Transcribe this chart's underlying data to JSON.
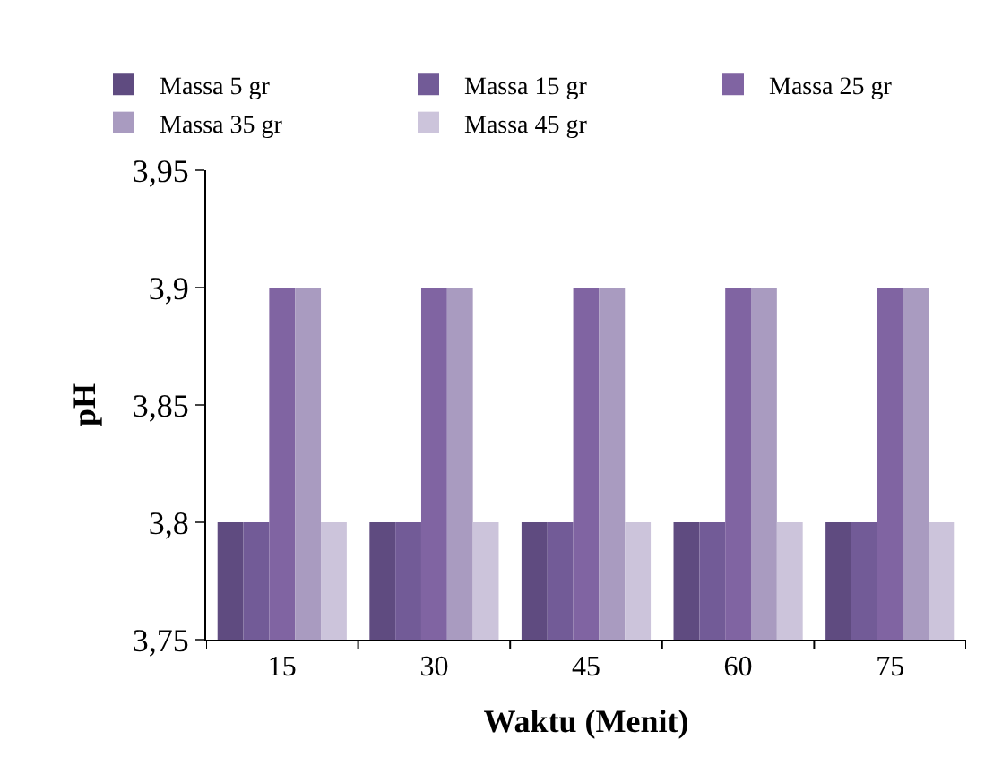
{
  "chart_data": {
    "type": "bar",
    "xlabel": "Waktu (Menit)",
    "ylabel": "pH",
    "categories": [
      "15",
      "30",
      "45",
      "60",
      "75"
    ],
    "series": [
      {
        "name": "Massa 5 gr",
        "color": "#5f4b80",
        "values": [
          3.8,
          3.8,
          3.8,
          3.8,
          3.8
        ]
      },
      {
        "name": "Massa 15 gr",
        "color": "#725b97",
        "values": [
          3.8,
          3.8,
          3.8,
          3.8,
          3.8
        ]
      },
      {
        "name": "Massa 25 gr",
        "color": "#8064a2",
        "values": [
          3.9,
          3.9,
          3.9,
          3.9,
          3.9
        ]
      },
      {
        "name": "Massa 35 gr",
        "color": "#a99bc0",
        "values": [
          3.9,
          3.9,
          3.9,
          3.9,
          3.9
        ]
      },
      {
        "name": "Massa 45 gr",
        "color": "#ccc4db",
        "values": [
          3.8,
          3.8,
          3.8,
          3.8,
          3.8
        ]
      }
    ],
    "ylim": [
      3.75,
      3.95
    ],
    "yticks": [
      {
        "value": 3.75,
        "label": "3,75"
      },
      {
        "value": 3.8,
        "label": "3,8"
      },
      {
        "value": 3.85,
        "label": "3,85"
      },
      {
        "value": 3.9,
        "label": "3,9"
      },
      {
        "value": 3.95,
        "label": "3,95"
      }
    ],
    "legend": "top"
  }
}
